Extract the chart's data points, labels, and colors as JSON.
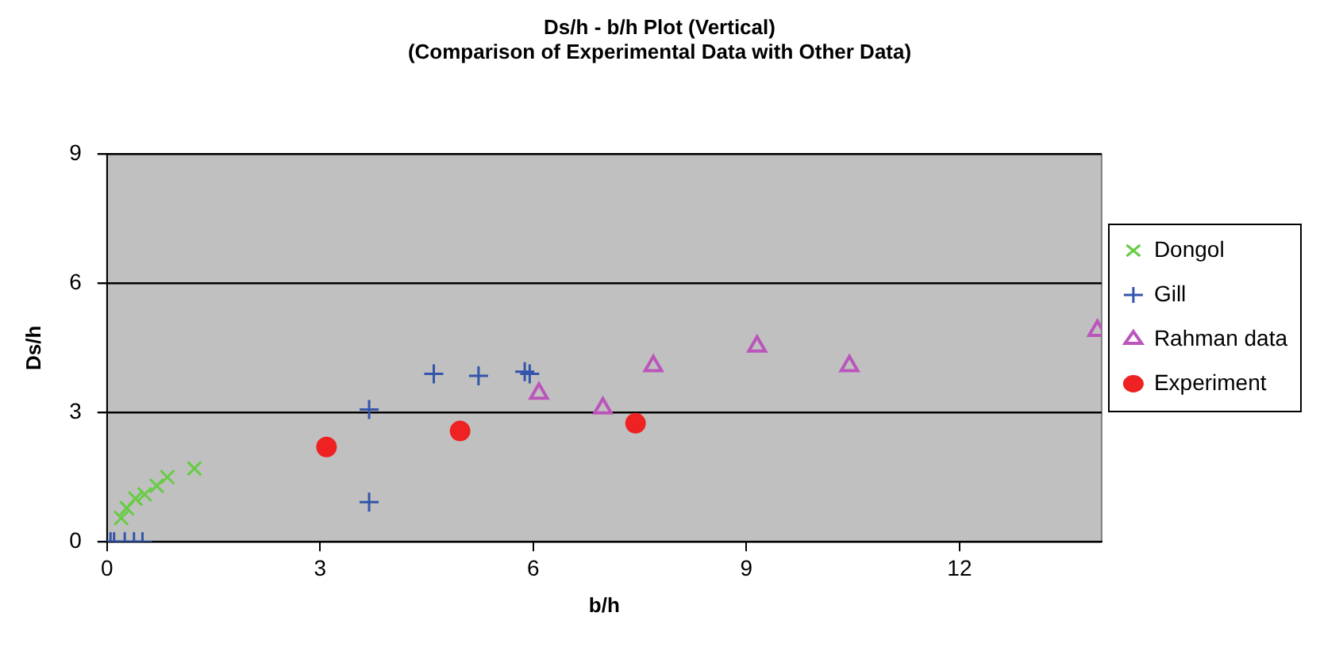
{
  "chart_data": {
    "type": "scatter",
    "title": "Ds/h - b/h Plot (Vertical)",
    "subtitle": "(Comparison of Experimental Data with Other Data)",
    "xlabel": "b/h",
    "ylabel": "Ds/h",
    "xlim": [
      0,
      14
    ],
    "xticks": [
      0,
      3,
      6,
      9,
      12
    ],
    "ylim": [
      0,
      9
    ],
    "yticks": [
      0,
      3,
      6,
      9
    ],
    "grid": "y",
    "legend": "right",
    "series": [
      {
        "name": "Dongol",
        "color": "#66cc44",
        "marker": "cross",
        "x": [
          0.2,
          0.28,
          0.4,
          0.53,
          0.7,
          0.85,
          1.23
        ],
        "values": [
          0.55,
          0.78,
          1.0,
          1.1,
          1.3,
          1.5,
          1.7
        ]
      },
      {
        "name": "Gill",
        "color": "#3355aa",
        "marker": "plus",
        "x": [
          0.05,
          0.1,
          0.25,
          0.38,
          0.5,
          3.69,
          3.69,
          4.6,
          5.23,
          5.88,
          5.95
        ],
        "values": [
          0,
          0,
          0,
          0,
          0,
          3.07,
          0.92,
          3.9,
          3.85,
          3.95,
          3.9
        ]
      },
      {
        "name": "Rahman data",
        "color": "#bb55bb",
        "marker": "triangle",
        "x": [
          6.08,
          6.98,
          7.69,
          9.15,
          10.45,
          13.94
        ],
        "values": [
          3.44,
          3.1,
          4.08,
          4.54,
          4.08,
          4.9
        ]
      },
      {
        "name": "Experiment",
        "color": "#ee2222",
        "marker": "circle",
        "x": [
          3.09,
          4.97,
          7.44
        ],
        "values": [
          2.2,
          2.57,
          2.75
        ]
      }
    ]
  }
}
